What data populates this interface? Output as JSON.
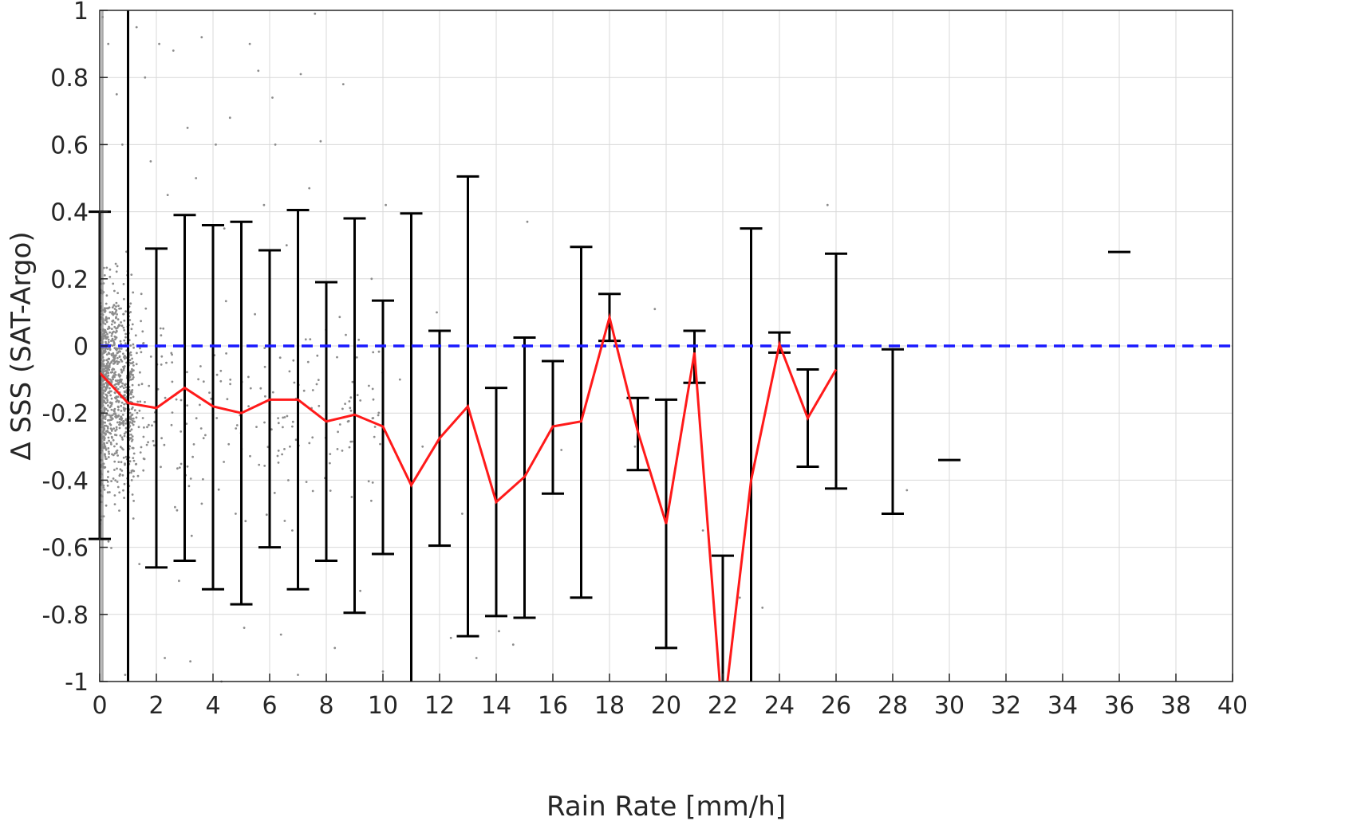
{
  "chart_data": {
    "type": "line",
    "title": "",
    "xlabel": "Rain Rate [mm/h]",
    "ylabel": "Δ SSS (SAT-Argo)",
    "xlim": [
      0,
      40
    ],
    "ylim": [
      -1,
      1
    ],
    "xticks": [
      0,
      2,
      4,
      6,
      8,
      10,
      12,
      14,
      16,
      18,
      20,
      22,
      24,
      26,
      28,
      30,
      32,
      34,
      36,
      38,
      40
    ],
    "yticks": [
      -1,
      -0.8,
      -0.6,
      -0.4,
      -0.2,
      0,
      0.2,
      0.4,
      0.6,
      0.8,
      1
    ],
    "yticklabels": [
      "-1",
      "-0.8",
      "-0.6",
      "-0.4",
      "-0.2",
      "0",
      "0.2",
      "0.4",
      "0.6",
      "0.8",
      "1"
    ],
    "grid": true,
    "reference_line": {
      "y": 0,
      "style": "dashed",
      "color": "#1a1aff"
    },
    "colors": {
      "mean_line": "#ff1a1a",
      "error_bars": "#000000",
      "scatter": "#8c8c8c",
      "grid": "#d9d9d9"
    },
    "mean_line": {
      "x": [
        0,
        1,
        2,
        3,
        4,
        5,
        6,
        7,
        8,
        9,
        10,
        11,
        12,
        13,
        14,
        15,
        16,
        17,
        18,
        19,
        20,
        21,
        22,
        23,
        24,
        25,
        26
      ],
      "y": [
        -0.08,
        -0.17,
        -0.185,
        -0.125,
        -0.18,
        -0.2,
        -0.16,
        -0.16,
        -0.225,
        -0.205,
        -0.24,
        -0.415,
        -0.275,
        -0.18,
        -0.465,
        -0.39,
        -0.24,
        -0.225,
        0.085,
        -0.255,
        -0.53,
        -0.02,
        -1.12,
        -0.4,
        0.005,
        -0.215,
        -0.07
      ]
    },
    "error_bars": [
      {
        "x": 0,
        "low": -0.575,
        "high": 0.4
      },
      {
        "x": 1,
        "low": -1.5,
        "high": 1.5
      },
      {
        "x": 2,
        "low": -0.66,
        "high": 0.29
      },
      {
        "x": 3,
        "low": -0.64,
        "high": 0.39
      },
      {
        "x": 4,
        "low": -0.725,
        "high": 0.36
      },
      {
        "x": 5,
        "low": -0.77,
        "high": 0.37
      },
      {
        "x": 6,
        "low": -0.6,
        "high": 0.285
      },
      {
        "x": 7,
        "low": -0.725,
        "high": 0.405
      },
      {
        "x": 8,
        "low": -0.64,
        "high": 0.19
      },
      {
        "x": 9,
        "low": -0.795,
        "high": 0.38
      },
      {
        "x": 10,
        "low": -0.62,
        "high": 0.135
      },
      {
        "x": 11,
        "low": -1.5,
        "high": 0.395
      },
      {
        "x": 12,
        "low": -0.595,
        "high": 0.045
      },
      {
        "x": 13,
        "low": -0.865,
        "high": 0.505
      },
      {
        "x": 14,
        "low": -0.805,
        "high": -0.125
      },
      {
        "x": 15,
        "low": -0.81,
        "high": 0.025
      },
      {
        "x": 16,
        "low": -0.44,
        "high": -0.045
      },
      {
        "x": 17,
        "low": -0.75,
        "high": 0.295
      },
      {
        "x": 18,
        "low": 0.015,
        "high": 0.155
      },
      {
        "x": 19,
        "low": -0.37,
        "high": -0.155
      },
      {
        "x": 20,
        "low": -0.9,
        "high": -0.16
      },
      {
        "x": 21,
        "low": -0.11,
        "high": 0.045
      },
      {
        "x": 22,
        "low": -1.5,
        "high": -0.625
      },
      {
        "x": 23,
        "low": -1.5,
        "high": 0.35
      },
      {
        "x": 24,
        "low": -0.02,
        "high": 0.04
      },
      {
        "x": 25,
        "low": -0.36,
        "high": -0.07
      },
      {
        "x": 26,
        "low": -0.425,
        "high": 0.275
      },
      {
        "x": 28,
        "low": -0.5,
        "high": -0.01
      },
      {
        "x": 30,
        "low": -0.34,
        "high": -0.34
      },
      {
        "x": 36,
        "low": 0.28,
        "high": 0.28
      }
    ],
    "scatter_note_points": [
      [
        0.1,
        0.98
      ],
      [
        0.3,
        0.9
      ],
      [
        0.6,
        0.75
      ],
      [
        0.8,
        0.6
      ],
      [
        1.3,
        0.95
      ],
      [
        1.6,
        0.8
      ],
      [
        2.1,
        0.9
      ],
      [
        2.6,
        0.88
      ],
      [
        3.1,
        0.65
      ],
      [
        3.6,
        0.92
      ],
      [
        4.1,
        0.6
      ],
      [
        4.6,
        0.68
      ],
      [
        5.3,
        0.9
      ],
      [
        5.6,
        0.82
      ],
      [
        6.1,
        0.74
      ],
      [
        6.2,
        0.6
      ],
      [
        7.1,
        0.81
      ],
      [
        7.6,
        0.99
      ],
      [
        7.8,
        0.61
      ],
      [
        8.6,
        0.78
      ],
      [
        10.0,
        -0.97
      ],
      [
        10.1,
        0.42
      ],
      [
        12.4,
        -0.87
      ],
      [
        13.3,
        -0.93
      ],
      [
        14.1,
        -0.85
      ],
      [
        14.6,
        -0.89
      ],
      [
        15.1,
        0.37
      ],
      [
        16.3,
        -0.31
      ],
      [
        18.9,
        -0.3
      ],
      [
        19.6,
        0.11
      ],
      [
        21.3,
        -0.55
      ],
      [
        22.6,
        -0.75
      ],
      [
        23.4,
        -0.78
      ],
      [
        25.7,
        0.42
      ],
      [
        26.0,
        -0.26
      ],
      [
        28.5,
        -0.43
      ],
      [
        0.9,
        -0.98
      ],
      [
        2.3,
        -0.93
      ],
      [
        3.2,
        -0.94
      ],
      [
        4.3,
        -1.0
      ],
      [
        5.1,
        -0.84
      ],
      [
        6.4,
        -0.86
      ],
      [
        7.0,
        -0.98
      ],
      [
        8.3,
        -0.9
      ],
      [
        9.2,
        -0.73
      ],
      [
        1.4,
        -0.65
      ],
      [
        2.8,
        -0.7
      ],
      [
        4.8,
        -0.5
      ],
      [
        6.8,
        -0.55
      ],
      [
        8.9,
        -0.45
      ],
      [
        1.8,
        0.55
      ],
      [
        2.4,
        0.45
      ],
      [
        3.4,
        0.5
      ],
      [
        4.4,
        0.35
      ],
      [
        5.8,
        0.42
      ],
      [
        6.6,
        0.3
      ],
      [
        7.4,
        0.47
      ],
      [
        9.6,
        0.2
      ],
      [
        10.6,
        -0.1
      ],
      [
        11.4,
        -0.3
      ],
      [
        11.9,
        0.1
      ],
      [
        12.8,
        -0.5
      ]
    ]
  }
}
